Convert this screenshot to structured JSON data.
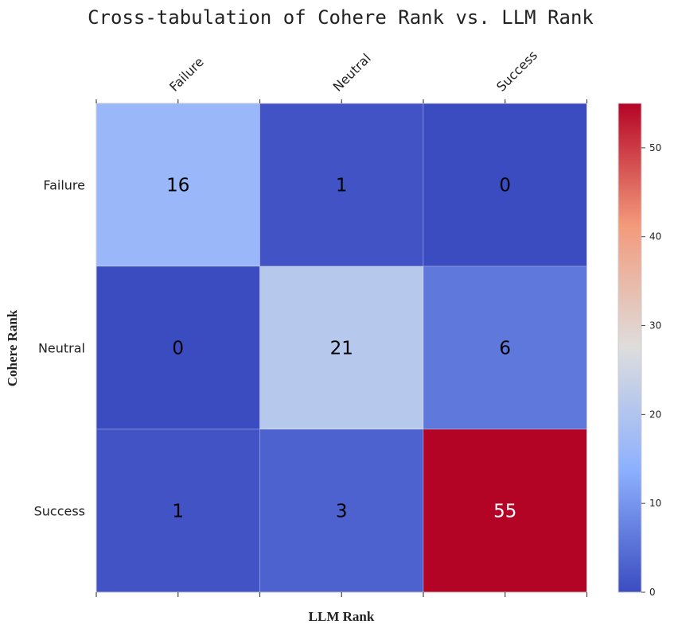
{
  "chart_data": {
    "type": "heatmap",
    "title": "Cross-tabulation of Cohere Rank vs. LLM Rank",
    "xlabel": "LLM Rank",
    "ylabel": "Cohere Rank",
    "x_categories": [
      "Failure",
      "Neutral",
      "Success"
    ],
    "y_categories": [
      "Failure",
      "Neutral",
      "Success"
    ],
    "values": [
      [
        16,
        1,
        0
      ],
      [
        0,
        21,
        6
      ],
      [
        1,
        3,
        55
      ]
    ],
    "colormap": "coolwarm",
    "vmin": 0,
    "vmax": 55,
    "colorbar_ticks": [
      0,
      10,
      20,
      30,
      40,
      50
    ]
  },
  "colors": {
    "cmap_low": "#3b4cc0",
    "cmap_mid": "#dddddd",
    "cmap_high": "#b40426",
    "text_dark": "#000000",
    "text_light": "#ffffff"
  }
}
